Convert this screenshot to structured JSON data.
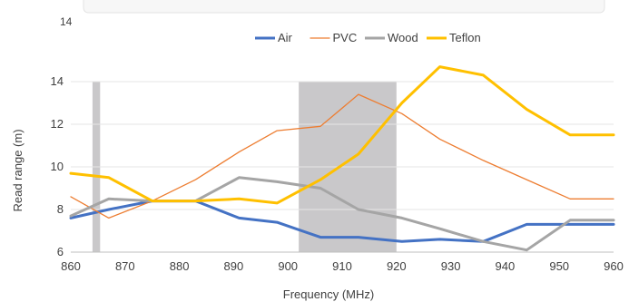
{
  "chart_data": {
    "type": "line",
    "title": "",
    "top_cropped_label": "14",
    "xlabel": "Frequency (MHz)",
    "ylabel": "Read range (m)",
    "xlim": [
      860,
      960
    ],
    "ylim": [
      6,
      14
    ],
    "x_ticks": [
      860,
      870,
      880,
      890,
      900,
      910,
      920,
      930,
      940,
      950,
      960
    ],
    "y_ticks": [
      6,
      8,
      10,
      12,
      14
    ],
    "grid": "horizontal",
    "legend_position": "top",
    "shaded_bands": [
      {
        "from": 864,
        "to": 865.4
      },
      {
        "from": 902,
        "to": 920
      }
    ],
    "series": [
      {
        "name": "Air",
        "color": "#4472c4",
        "weight": "bold",
        "x": [
          860,
          867,
          875,
          883,
          891,
          898,
          906,
          913,
          921,
          928,
          936,
          944,
          952,
          960
        ],
        "y": [
          7.6,
          8.0,
          8.4,
          8.4,
          7.6,
          7.4,
          6.7,
          6.7,
          6.5,
          6.6,
          6.5,
          7.3,
          7.3,
          7.3
        ]
      },
      {
        "name": "PVC",
        "color": "#ed7d31",
        "weight": "thin",
        "x": [
          860,
          867,
          875,
          883,
          891,
          898,
          906,
          913,
          921,
          928,
          936,
          944,
          952,
          960
        ],
        "y": [
          8.6,
          7.6,
          8.4,
          9.4,
          10.7,
          11.7,
          11.9,
          13.4,
          12.5,
          11.3,
          10.3,
          9.4,
          8.5,
          8.5
        ]
      },
      {
        "name": "Wood",
        "color": "#a5a5a5",
        "weight": "bold",
        "x": [
          860,
          867,
          875,
          883,
          891,
          898,
          906,
          913,
          921,
          928,
          936,
          944,
          952,
          960
        ],
        "y": [
          7.7,
          8.5,
          8.4,
          8.4,
          9.5,
          9.3,
          9.0,
          8.0,
          7.6,
          7.1,
          6.5,
          6.1,
          7.5,
          7.5
        ]
      },
      {
        "name": "Teflon",
        "color": "#ffc000",
        "weight": "bold",
        "x": [
          860,
          867,
          875,
          883,
          891,
          898,
          906,
          913,
          921,
          928,
          936,
          944,
          952,
          960
        ],
        "y": [
          9.7,
          9.5,
          8.4,
          8.4,
          8.5,
          8.3,
          9.4,
          10.6,
          13.0,
          14.7,
          14.3,
          12.7,
          11.5,
          11.5
        ]
      }
    ]
  }
}
